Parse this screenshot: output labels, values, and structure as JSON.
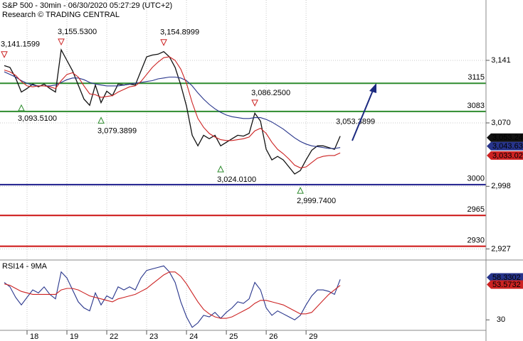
{
  "chart_data": [
    {
      "type": "line",
      "title": "S&P 500 - 30min - 06/30/2020 05:27:29 (UTC+2)",
      "subtitle": "Research © TRADING CENTRAL",
      "ylim": [
        2915.2,
        3209.5
      ],
      "yticks": [
        {
          "value": 3141,
          "label": "3,141"
        },
        {
          "value": 3070,
          "label": "3,070"
        },
        {
          "value": 2998,
          "label": "2,998"
        },
        {
          "value": 2927,
          "label": "2,927"
        }
      ],
      "xlim": [
        -0.75,
        84.6
      ],
      "xticks": [
        {
          "value": 4,
          "label": "18"
        },
        {
          "value": 11,
          "label": "19"
        },
        {
          "value": 18,
          "label": "22"
        },
        {
          "value": 25,
          "label": "23"
        },
        {
          "value": 32,
          "label": "24"
        },
        {
          "value": 39,
          "label": "25"
        },
        {
          "value": 46,
          "label": "26"
        },
        {
          "value": 53,
          "label": "29"
        }
      ],
      "grid": true,
      "series": [
        {
          "color": "#111111",
          "values": [
            3135,
            3133,
            3121,
            3105,
            3109,
            3114,
            3111,
            3114,
            3109,
            3105,
            3153,
            3141,
            3129,
            3113,
            3097,
            3090,
            3113,
            3093,
            3106,
            3101,
            3114,
            3113,
            3114,
            3113,
            3129,
            3145,
            3147,
            3148,
            3151,
            3145,
            3133,
            3113,
            3089,
            3056,
            3044,
            3056,
            3052,
            3056,
            3044,
            3048,
            3052,
            3056,
            3055,
            3058,
            3081,
            3072,
            3040,
            3028,
            3032,
            3028,
            3020,
            3012,
            3016,
            3028,
            3039,
            3044,
            3044,
            3042,
            3040,
            3055
          ]
        },
        {
          "color": "#27348b",
          "values": [
            3128,
            3125,
            3122,
            3118,
            3115,
            3113,
            3112,
            3112,
            3112,
            3113,
            3116,
            3119,
            3121,
            3121,
            3119,
            3116,
            3114,
            3113,
            3112,
            3112,
            3112,
            3113,
            3114,
            3115,
            3116,
            3117,
            3118,
            3120,
            3121,
            3122,
            3122,
            3121,
            3118,
            3112,
            3104,
            3097,
            3091,
            3086,
            3082,
            3079,
            3077,
            3076,
            3075,
            3075,
            3076,
            3076,
            3074,
            3071,
            3067,
            3063,
            3058,
            3053,
            3049,
            3046,
            3044,
            3043,
            3042,
            3041,
            3041,
            3042
          ]
        },
        {
          "color": "#cc2222",
          "values": [
            3130,
            3128,
            3124,
            3117,
            3112,
            3111,
            3112,
            3112,
            3111,
            3109,
            3118,
            3125,
            3127,
            3122,
            3112,
            3103,
            3102,
            3099,
            3100,
            3101,
            3105,
            3108,
            3111,
            3112,
            3117,
            3125,
            3133,
            3139,
            3144,
            3145,
            3141,
            3131,
            3115,
            3093,
            3075,
            3065,
            3058,
            3054,
            3051,
            3050,
            3050,
            3051,
            3052,
            3054,
            3061,
            3064,
            3058,
            3048,
            3040,
            3035,
            3029,
            3022,
            3019,
            3020,
            3025,
            3030,
            3032,
            3033,
            3033,
            3036
          ]
        }
      ],
      "levels": [
        {
          "value": 3115,
          "color": "#2e8b2e"
        },
        {
          "value": 3083,
          "color": "#2e8b2e"
        },
        {
          "value": 3000,
          "color": "#1c1c8c"
        },
        {
          "value": 2965,
          "color": "#cc1111"
        },
        {
          "value": 2930,
          "color": "#cc1111"
        }
      ],
      "annotations": [
        {
          "x": 0,
          "value": 3141.1599,
          "label": "3,141.1599",
          "marker": "down"
        },
        {
          "x": 10,
          "value": 3155.53,
          "label": "3,155.5300",
          "marker": "down"
        },
        {
          "x": 28,
          "value": 3154.8999,
          "label": "3,154.8999",
          "marker": "down"
        },
        {
          "x": 3,
          "value": 3093.51,
          "label": "3,093.5100",
          "marker": "up"
        },
        {
          "x": 17,
          "value": 3079.3899,
          "label": "3,079.3899",
          "marker": "up"
        },
        {
          "x": 44,
          "value": 3086.25,
          "label": "3,086.2500",
          "marker": "down"
        },
        {
          "x": 58,
          "value": 3053.3899,
          "label": "3,053.3899",
          "marker": "none"
        },
        {
          "x": 38,
          "value": 3024.01,
          "label": "3,024.0100",
          "marker": "up"
        },
        {
          "x": 52,
          "value": 2999.74,
          "label": "2,999.7400",
          "marker": "up"
        }
      ],
      "price_tags": [
        {
          "value": 3053.24,
          "label": "3,053.24",
          "color": "#111111"
        },
        {
          "value": 3043.63,
          "label": "3,043.63",
          "color": "#27348b"
        },
        {
          "value": 3033.02,
          "label": "3,033.02",
          "color": "#cc2222"
        }
      ]
    },
    {
      "type": "line",
      "title": "RSI14 - 9MA",
      "ylim": [
        23,
        69
      ],
      "yticks": [
        30
      ],
      "xlim": [
        -0.75,
        84.6
      ],
      "series": [
        {
          "color": "#27348b",
          "values": [
            55,
            52,
            45,
            40,
            45,
            50,
            48,
            52,
            47,
            44,
            62,
            58,
            50,
            42,
            38,
            36,
            48,
            40,
            46,
            44,
            52,
            50,
            52,
            50,
            58,
            63,
            64,
            65,
            66,
            62,
            55,
            42,
            32,
            25,
            28,
            33,
            32,
            35,
            31,
            35,
            38,
            42,
            41,
            44,
            55,
            50,
            38,
            33,
            36,
            34,
            32,
            30,
            33,
            40,
            46,
            50,
            50,
            49,
            47,
            57
          ]
        },
        {
          "color": "#cc2222",
          "values": [
            54,
            53,
            51,
            49,
            48,
            47,
            47,
            47,
            47,
            47,
            50,
            51,
            51,
            50,
            48,
            46,
            45,
            44,
            43,
            42,
            44,
            45,
            46,
            47,
            49,
            51,
            54,
            57,
            60,
            62,
            62,
            59,
            54,
            48,
            42,
            37,
            34,
            32,
            31,
            31,
            32,
            34,
            36,
            38,
            41,
            43,
            43,
            42,
            41,
            40,
            38,
            36,
            34,
            34,
            35,
            39,
            43,
            47,
            50,
            53
          ]
        }
      ],
      "price_tags": [
        {
          "value": 58.3302,
          "color": "#27348b"
        },
        {
          "value": 53.5732,
          "color": "#cc2222"
        }
      ]
    }
  ]
}
